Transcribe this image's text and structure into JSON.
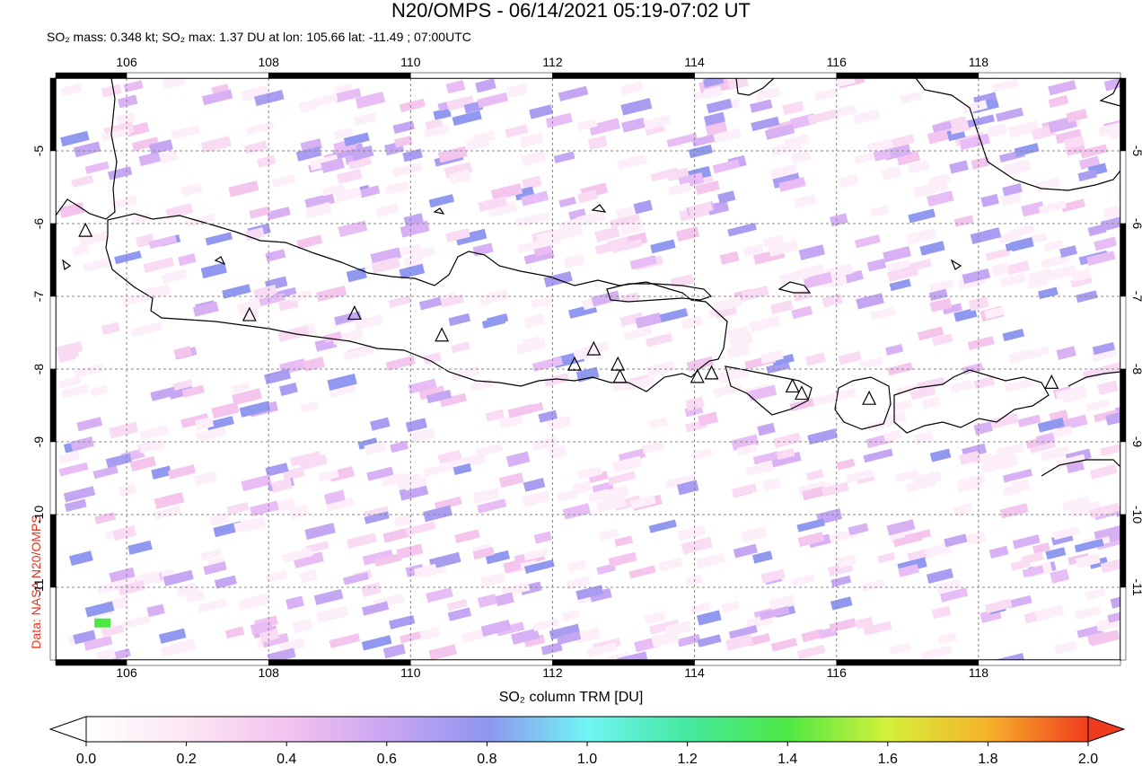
{
  "title": "N20/OMPS - 06/14/2021 05:19-07:02 UT",
  "subtitle": "SO₂ mass: 0.348 kt; SO₂ max: 1.37 DU at lon: 105.66 lat: -11.49 ; 07:00UTC",
  "credit": "Data: NASA N20/OMPS",
  "colorbar": {
    "title": "SO₂ column TRM [DU]",
    "ticks": [
      "0.0",
      "0.2",
      "0.4",
      "0.6",
      "0.8",
      "1.0",
      "1.2",
      "1.4",
      "1.6",
      "1.8",
      "2.0"
    ]
  },
  "map": {
    "lon_range": [
      105,
      120
    ],
    "lat_range": [
      -12.0,
      -4.0
    ],
    "lon_ticks": [
      "106",
      "108",
      "110",
      "112",
      "114",
      "116",
      "118"
    ],
    "lat_ticks": [
      "-5",
      "-6",
      "-7",
      "-8",
      "-9",
      "-10",
      "-11"
    ],
    "volcano_icon": "triangle-icon",
    "volcanoes": [
      {
        "lon": 105.42,
        "lat": -6.1
      },
      {
        "lon": 107.73,
        "lat": -7.26
      },
      {
        "lon": 109.21,
        "lat": -7.24
      },
      {
        "lon": 110.44,
        "lat": -7.54
      },
      {
        "lon": 112.31,
        "lat": -7.94
      },
      {
        "lon": 112.58,
        "lat": -7.73
      },
      {
        "lon": 112.92,
        "lat": -7.94
      },
      {
        "lon": 112.95,
        "lat": -8.11
      },
      {
        "lon": 114.04,
        "lat": -8.11
      },
      {
        "lon": 114.24,
        "lat": -8.06
      },
      {
        "lon": 115.38,
        "lat": -8.24
      },
      {
        "lon": 115.51,
        "lat": -8.34
      },
      {
        "lon": 116.46,
        "lat": -8.41
      },
      {
        "lon": 119.03,
        "lat": -8.19
      }
    ],
    "max_so2": {
      "lon": 105.66,
      "lat": -11.49,
      "value": 1.37
    }
  }
}
